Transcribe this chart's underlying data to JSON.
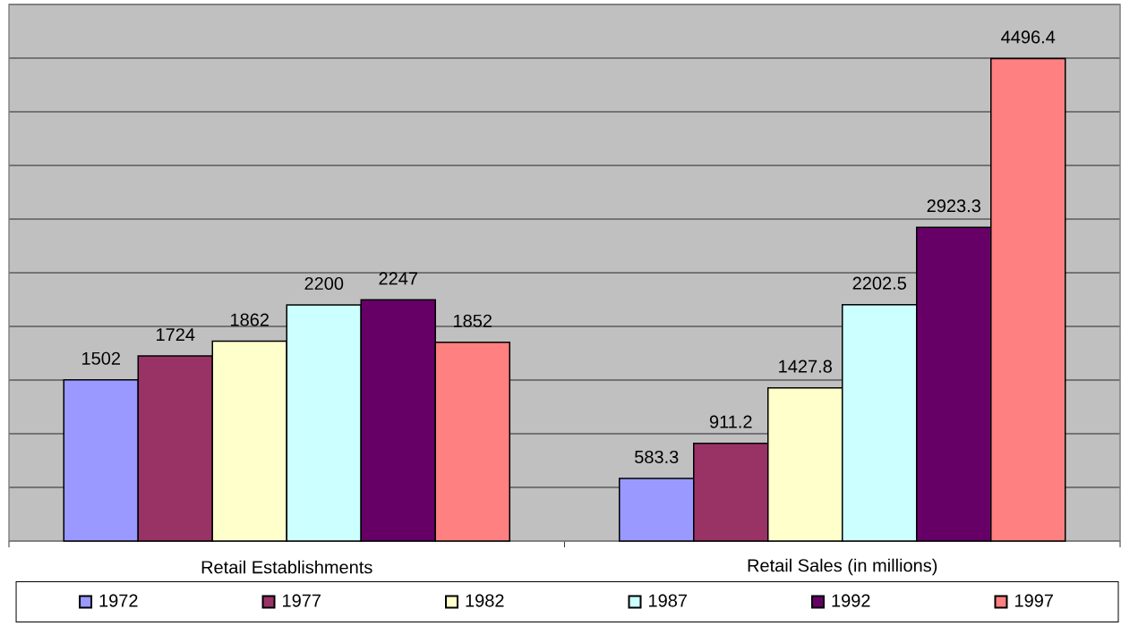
{
  "chart_data": {
    "type": "bar",
    "categories": [
      "Retail Establishments",
      "Retail Sales (in millions)"
    ],
    "series": [
      {
        "name": "1972",
        "color": "#9999ff",
        "values": [
          1502,
          583.3
        ]
      },
      {
        "name": "1977",
        "color": "#993366",
        "values": [
          1724,
          911.2
        ]
      },
      {
        "name": "1982",
        "color": "#ffffcc",
        "values": [
          1862,
          1427.8
        ]
      },
      {
        "name": "1987",
        "color": "#ccffff",
        "values": [
          2200,
          2202.5
        ]
      },
      {
        "name": "1992",
        "color": "#660066",
        "values": [
          2247,
          2923.3
        ]
      },
      {
        "name": "1997",
        "color": "#ff8080",
        "values": [
          1852,
          4496.4
        ]
      }
    ],
    "ylim": [
      0,
      5000
    ],
    "yticks": [
      {
        "value": 0,
        "label": null
      },
      {
        "value": 500,
        "label": null
      },
      {
        "value": 1000,
        "label": null
      },
      {
        "value": 1500,
        "label": null
      },
      {
        "value": 2000,
        "label": null
      },
      {
        "value": 2500,
        "label": null
      },
      {
        "value": 3000,
        "label": null
      },
      {
        "value": 3500,
        "label": null
      },
      {
        "value": 4000,
        "label": null
      },
      {
        "value": 4500,
        "label": null
      },
      {
        "value": 5000,
        "label": null
      }
    ],
    "grid": "y",
    "legend": "bottom",
    "tick_labels": "x",
    "data_labels": true
  }
}
